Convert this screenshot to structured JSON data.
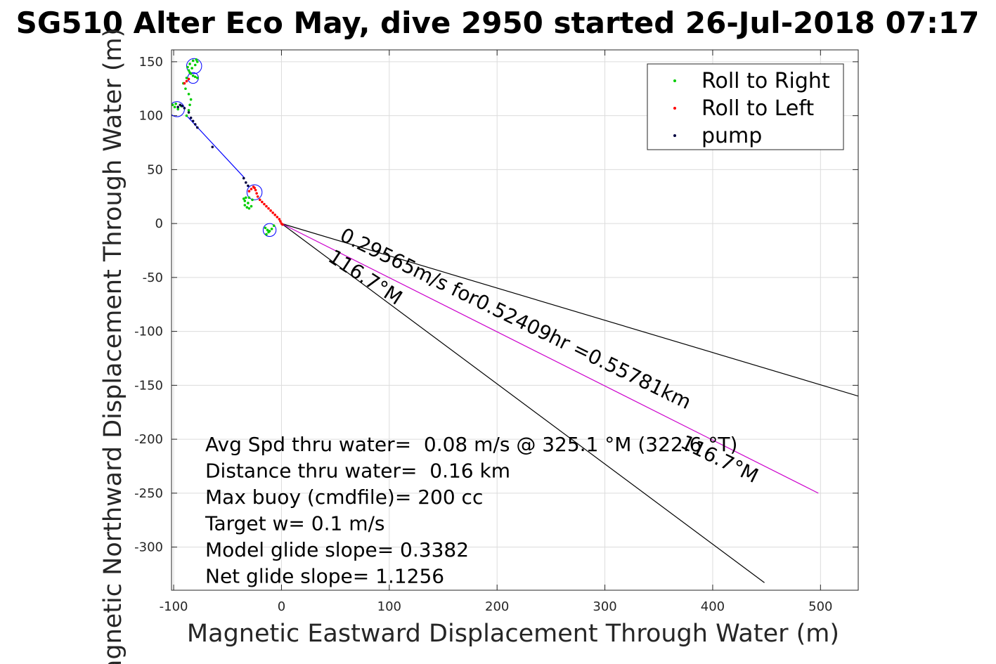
{
  "chart_data": {
    "type": "scatter",
    "title": "SG510 Alter Eco May, dive 2950 started 26-Jul-2018 07:17",
    "xlabel": "Magnetic Eastward Displacement Through Water (m)",
    "ylabel": "Magnetic Northward Displacement Through Water (m)",
    "xlim": [
      -102,
      535
    ],
    "ylim": [
      -340,
      161
    ],
    "xticks": [
      -100,
      0,
      100,
      200,
      300,
      400,
      500
    ],
    "yticks": [
      150,
      100,
      50,
      0,
      -50,
      -100,
      -150,
      -200,
      -250,
      -300
    ],
    "xtick_labels": [
      "-100",
      "0",
      "100",
      "200",
      "300",
      "400",
      "500"
    ],
    "ytick_labels": [
      "150",
      "100",
      "50",
      "0",
      "-50",
      "-100",
      "-150",
      "-200",
      "-250",
      "-300"
    ],
    "grid": true,
    "legend_position": "top-right",
    "series": [
      {
        "name": "Roll to Right",
        "color": "#00cc00",
        "marker": "dot",
        "x": [
          -88,
          -86,
          -85,
          -84,
          -86,
          -89,
          -91,
          -88,
          -85,
          -83,
          -80,
          -78,
          -79,
          -82,
          -85,
          -87,
          -86,
          -84,
          -82,
          -80,
          -78,
          -96,
          -99,
          -101,
          -98,
          -93,
          -34,
          -32,
          -30,
          -28,
          -31,
          -34,
          -35,
          -33,
          -30,
          -27,
          -15,
          -13,
          -11,
          -9,
          -7,
          -12,
          -14
        ],
        "y": [
          100,
          105,
          110,
          115,
          120,
          125,
          130,
          135,
          140,
          144,
          147,
          150,
          152,
          151,
          148,
          145,
          142,
          139,
          137,
          136,
          135,
          106,
          108,
          110,
          111,
          109,
          17,
          15,
          14,
          16,
          19,
          21,
          23,
          24,
          24,
          22,
          -4,
          -6,
          -7,
          -5,
          -2,
          -8,
          -10
        ]
      },
      {
        "name": "Roll to Left",
        "color": "#ff0000",
        "marker": "dot",
        "x": [
          -90,
          -88,
          -86,
          -30,
          -28,
          -26,
          -25,
          -24,
          -23,
          -22,
          -20,
          -18,
          -16,
          -14,
          -12,
          -10,
          -8,
          -6,
          -4,
          -2,
          -1,
          0,
          1
        ],
        "y": [
          130,
          132,
          134,
          30,
          32,
          34,
          33,
          31,
          28,
          25,
          22,
          20,
          18,
          16,
          14,
          12,
          10,
          8,
          6,
          4,
          2,
          0,
          -1
        ]
      },
      {
        "name": "pump",
        "color": "#000040",
        "marker": "dot",
        "x": [
          -86,
          -84,
          -82,
          -80,
          -78,
          -64,
          -35,
          -33,
          -31,
          -96,
          -94,
          -92,
          -90
        ],
        "y": [
          103,
          98,
          95,
          92,
          89,
          71,
          42,
          38,
          35,
          108,
          110,
          109,
          107
        ]
      }
    ],
    "lines": [
      {
        "role": "current-track",
        "color": "#0000ff",
        "x": [
          -88,
          -34
        ],
        "y": [
          100,
          42
        ]
      },
      {
        "role": "bearing-upper",
        "color": "#000000",
        "x": [
          0,
          535
        ],
        "y": [
          0,
          -160
        ]
      },
      {
        "role": "bearing-lower",
        "color": "#000000",
        "x": [
          0,
          448
        ],
        "y": [
          0,
          -333
        ]
      },
      {
        "role": "net-displacement",
        "color": "#cc00cc",
        "x": [
          0,
          498
        ],
        "y": [
          0,
          -250
        ]
      }
    ],
    "circles": [
      {
        "x": -81,
        "y": 146,
        "r": 7
      },
      {
        "x": -82,
        "y": 135,
        "r": 5
      },
      {
        "x": -97,
        "y": 106,
        "r": 7
      },
      {
        "x": -25,
        "y": 29,
        "r": 7
      },
      {
        "x": -11,
        "y": -6,
        "r": 6
      }
    ],
    "text_annotations": [
      {
        "text": "0.29565m/s for0.52409hr =0.55781km",
        "x": 53,
        "y": -15,
        "rotate": 26
      },
      {
        "text": "116.7°M",
        "x": 42,
        "y": -34,
        "rotate": 33
      },
      {
        "text": "116.7°M",
        "x": 369,
        "y": -207,
        "rotate": 26
      }
    ],
    "stats_lines": [
      "Avg Spd thru water=  0.08 m/s @ 325.1 °M (322.6 °T)",
      "Distance thru water=  0.16 km",
      "Max buoy (cmdfile)= 200 cc",
      "Target w= 0.1 m/s",
      "Model glide slope= 0.3382",
      "Net glide slope= 1.1256"
    ]
  }
}
